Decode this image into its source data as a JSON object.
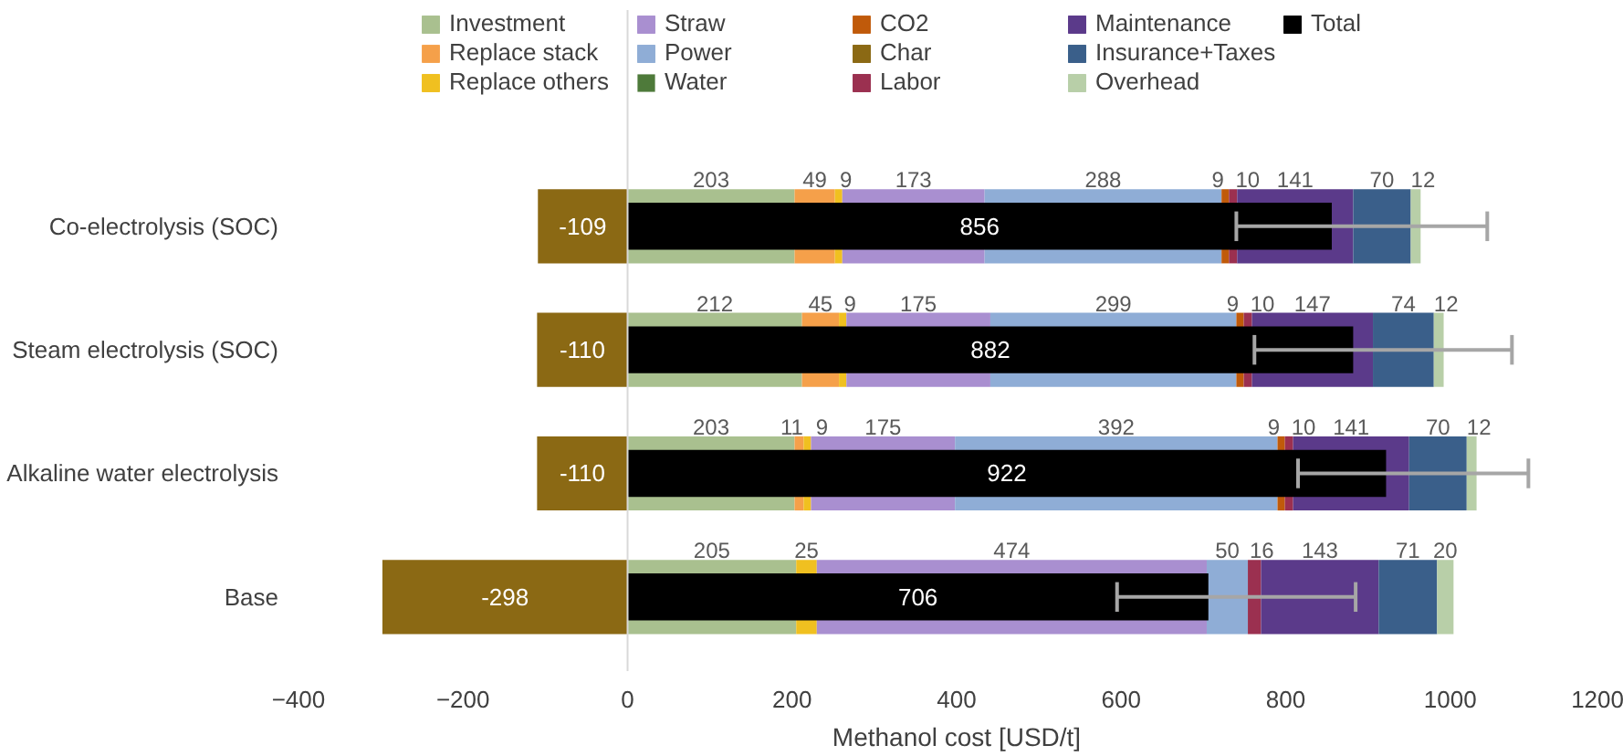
{
  "chart_data": {
    "type": "bar",
    "orientation": "horizontal",
    "xlabel": "Methanol cost [USD/t]",
    "categories": [
      "Co-electrolysis (SOC)",
      "Steam electrolysis (SOC)",
      "Alkaline water electrolysis",
      "Base"
    ],
    "xlim": [
      -400,
      1200
    ],
    "xticks": [
      -400,
      -200,
      0,
      200,
      400,
      600,
      800,
      1000,
      1200
    ],
    "grid": false,
    "legend": "top",
    "data_labels": true,
    "ref_lines": [
      {
        "axis": "x",
        "value": 0,
        "color": "#d9d9d9"
      }
    ],
    "series": [
      {
        "name": "Investment",
        "color": "#a9c08f",
        "values": [
          203,
          212,
          203,
          205
        ],
        "base": [
          0,
          0,
          0,
          0
        ]
      },
      {
        "name": "Replace stack",
        "color": "#f5a04a",
        "values": [
          49,
          45,
          11,
          null
        ],
        "base": [
          203,
          212,
          203,
          null
        ]
      },
      {
        "name": "Replace others",
        "color": "#f0c020",
        "values": [
          9,
          9,
          9,
          25
        ],
        "base": [
          252,
          257,
          214,
          205
        ]
      },
      {
        "name": "Straw",
        "color": "#a98fd0",
        "values": [
          173,
          175,
          175,
          474
        ],
        "base": [
          261,
          266,
          223,
          230
        ]
      },
      {
        "name": "Power",
        "color": "#8fadd6",
        "values": [
          288,
          299,
          392,
          50
        ],
        "base": [
          434,
          441,
          398,
          704
        ]
      },
      {
        "name": "Water",
        "color": "#4e7a3a",
        "values": [
          null,
          null,
          null,
          null
        ],
        "base": [
          null,
          null,
          null,
          null
        ]
      },
      {
        "name": "CO2",
        "color": "#c05a0a",
        "values": [
          9,
          9,
          9,
          null
        ],
        "base": [
          722,
          740,
          790,
          null
        ]
      },
      {
        "name": "Char",
        "color": "#8b6914",
        "values": [
          -109,
          -110,
          -110,
          -298
        ],
        "base": [
          0,
          0,
          0,
          0
        ]
      },
      {
        "name": "Labor",
        "color": "#9b3050",
        "values": [
          10,
          10,
          10,
          16
        ],
        "base": [
          731,
          749,
          799,
          754
        ]
      },
      {
        "name": "Maintenance",
        "color": "#5b3a8a",
        "values": [
          141,
          147,
          141,
          143
        ],
        "base": [
          741,
          759,
          809,
          770
        ]
      },
      {
        "name": "Insurance+Taxes",
        "color": "#3a5f8a",
        "values": [
          70,
          74,
          70,
          71
        ],
        "base": [
          882,
          906,
          950,
          913
        ]
      },
      {
        "name": "Overhead",
        "color": "#b8cfa8",
        "values": [
          12,
          12,
          12,
          20
        ],
        "base": [
          952,
          980,
          1020,
          984
        ]
      },
      {
        "name": "Total",
        "color": "#000000",
        "values": [
          856,
          882,
          922,
          706
        ],
        "base": [
          0,
          0,
          0,
          0
        ],
        "errors": [
          [
            740,
            1045
          ],
          [
            762,
            1075
          ],
          [
            815,
            1095
          ],
          [
            595,
            885
          ]
        ]
      }
    ]
  }
}
